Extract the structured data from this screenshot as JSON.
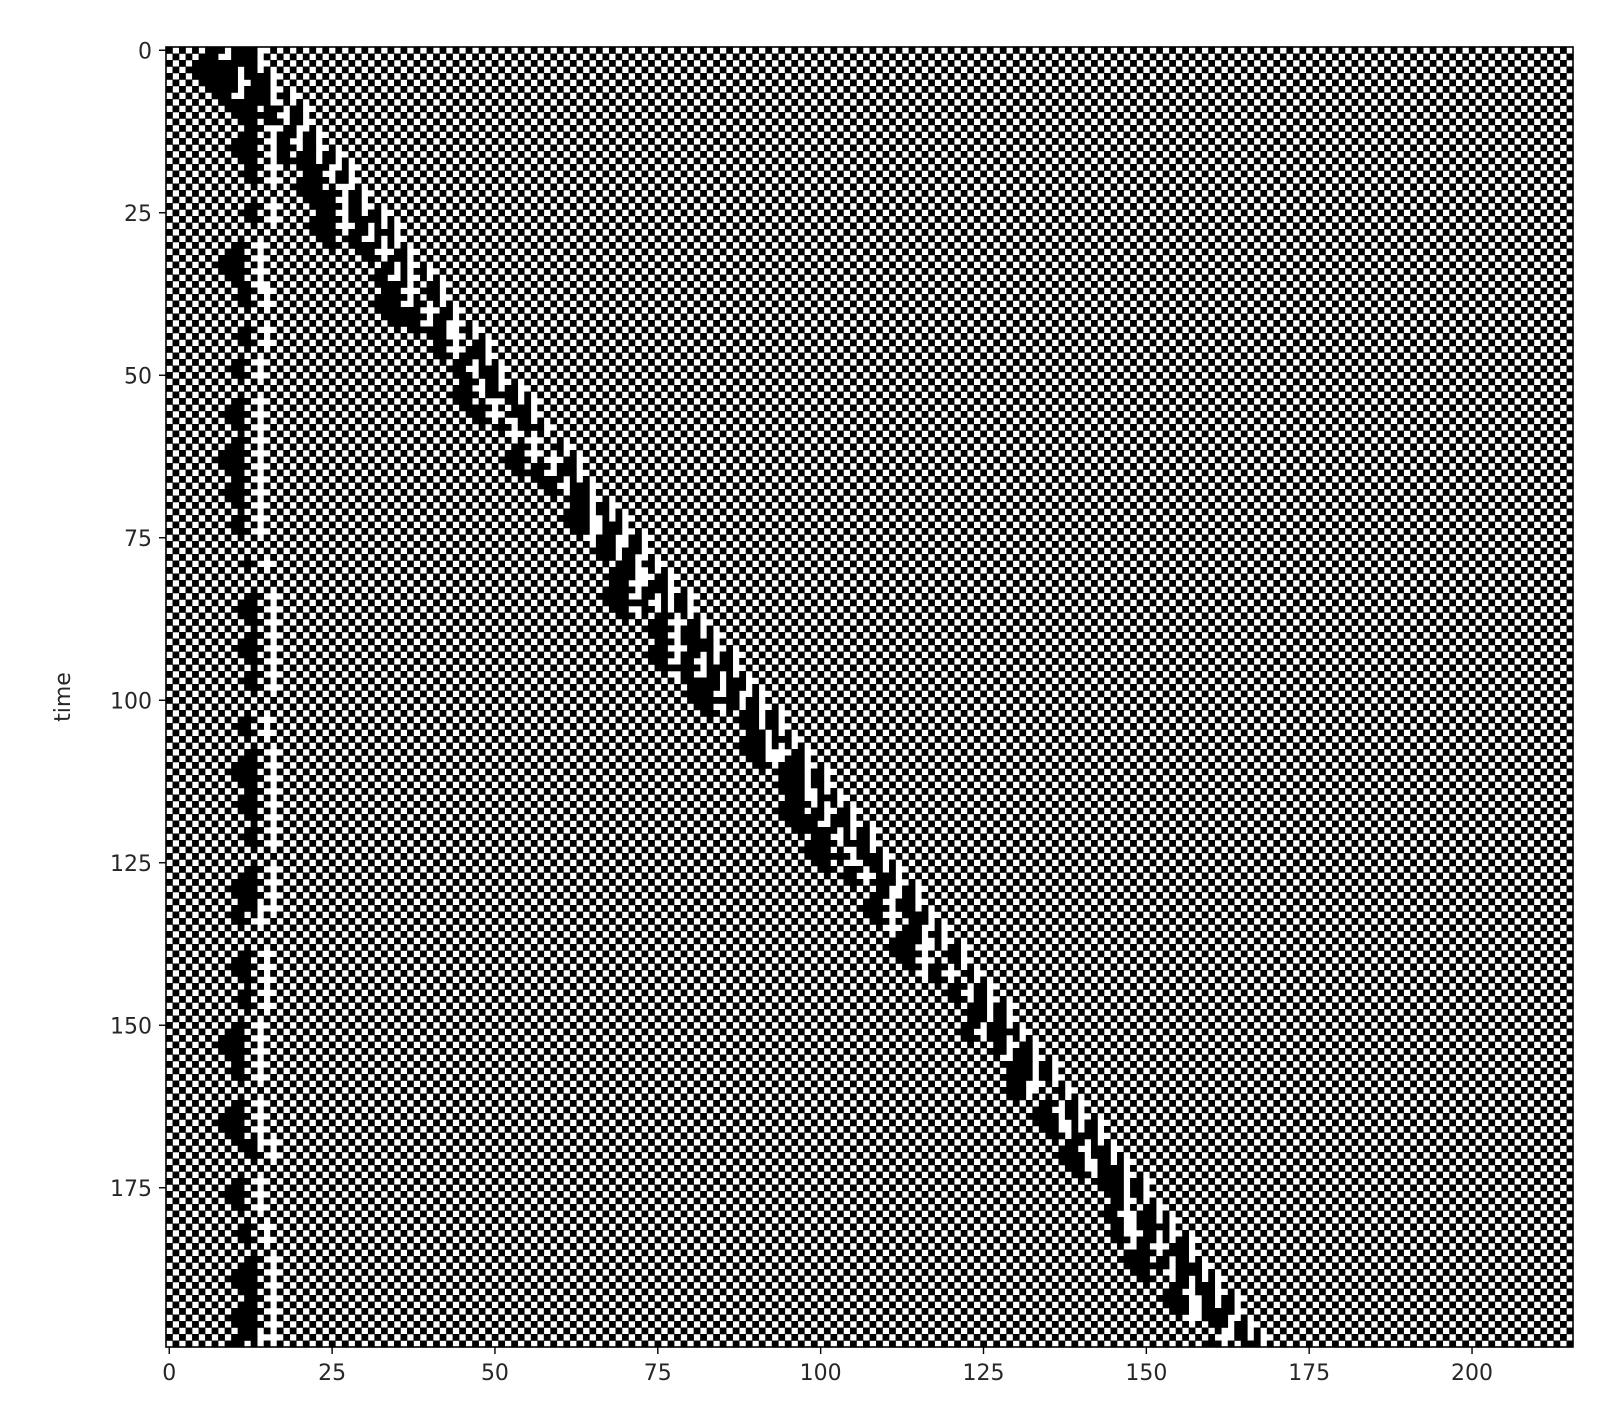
{
  "chart_data": {
    "type": "heatmap",
    "title": "",
    "xlabel": "",
    "ylabel": "time",
    "xlim": [
      0,
      216
    ],
    "ylim": [
      200,
      0
    ],
    "x_ticks": [
      0,
      25,
      50,
      75,
      100,
      125,
      150,
      175,
      200
    ],
    "y_ticks": [
      0,
      25,
      50,
      75,
      100,
      125,
      150,
      175
    ],
    "colormap": "binary",
    "grid": false,
    "legend": "none",
    "cells": "binary cellular-automaton space-time pattern: periodic 01 background with left-moving particle trails spawned along a diagonal front"
  },
  "colors": {
    "on": "#000000",
    "off": "#ffffff",
    "axes": "#000000"
  }
}
